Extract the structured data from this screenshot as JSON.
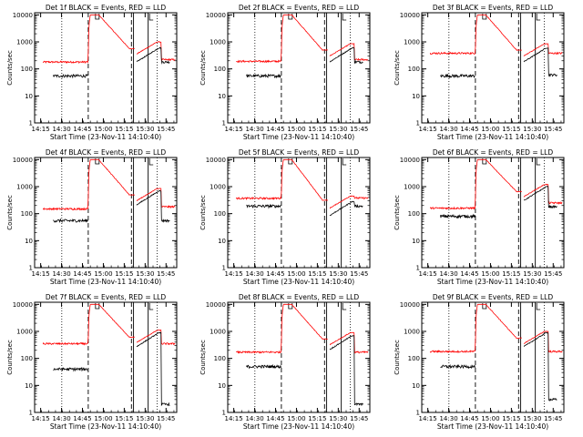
{
  "chart_data": {
    "type": "line",
    "grid_layout": "3x3",
    "y_scale": "log",
    "ylim": [
      1,
      12000
    ],
    "y_ticks": [
      1,
      10,
      100,
      1000,
      10000
    ],
    "y_tick_labels": [
      "1",
      "10",
      "100",
      "1000",
      "10000"
    ],
    "ylabel": "Counts/sec",
    "xlabel": "Start Time (23-Nov-11 14:10:40)",
    "xlim_minutes": [
      0,
      102
    ],
    "x_ticks_minutes": [
      4.33,
      19.33,
      34.33,
      49.33,
      64.33,
      79.33,
      94.33
    ],
    "x_tick_labels": [
      "14:15",
      "14:30",
      "14:45",
      "15:00",
      "15:15",
      "15:30",
      "15:45"
    ],
    "series_colors": {
      "events": "#000000",
      "lld": "#ff0000"
    },
    "panels": [
      {
        "title": "Det 1f BLACK = Events, RED = LLD",
        "events_base": 55,
        "lld_base": 180,
        "ev_end": 180,
        "lld_peak_hit": 1000,
        "ev_peak_hit": 600,
        "lld_after": 220
      },
      {
        "title": "Det 2f BLACK = Events, RED = LLD",
        "events_base": 55,
        "lld_base": 190,
        "ev_end": 180,
        "lld_peak_hit": 850,
        "ev_peak_hit": 600,
        "lld_after": 220
      },
      {
        "title": "Det 3f BLACK = Events, RED = LLD",
        "events_base": 55,
        "lld_base": 380,
        "ev_end": 60,
        "lld_peak_hit": 850,
        "ev_peak_hit": 600,
        "lld_after": 380
      },
      {
        "title": "Det 4f BLACK = Events, RED = LLD",
        "events_base": 55,
        "lld_base": 150,
        "ev_end": 55,
        "lld_peak_hit": 850,
        "ev_peak_hit": 700,
        "lld_after": 180
      },
      {
        "title": "Det 5f BLACK = Events, RED = LLD",
        "events_base": 190,
        "lld_base": 370,
        "ev_end": 190,
        "lld_peak_hit": 450,
        "ev_peak_hit": 280,
        "lld_after": 380
      },
      {
        "title": "Det 6f BLACK = Events, RED = LLD",
        "events_base": 80,
        "lld_base": 160,
        "ev_end": 180,
        "lld_peak_hit": 1200,
        "ev_peak_hit": 1000,
        "lld_after": 250
      },
      {
        "title": "Det 7f BLACK = Events, RED = LLD",
        "events_base": 40,
        "lld_base": 350,
        "ev_end": 2,
        "lld_peak_hit": 1100,
        "ev_peak_hit": 900,
        "lld_after": 350
      },
      {
        "title": "Det 8f BLACK = Events, RED = LLD",
        "events_base": 50,
        "lld_base": 170,
        "ev_end": 2,
        "lld_peak_hit": 900,
        "ev_peak_hit": 700,
        "lld_after": 170
      },
      {
        "title": "Det 9f BLACK = Events, RED = LLD",
        "events_base": 50,
        "lld_base": 180,
        "ev_end": 3,
        "lld_peak_hit": 1000,
        "ev_peak_hit": 900,
        "lld_after": 180
      }
    ],
    "flare_shape": {
      "peak": 10000,
      "attenuator_in_minute": 38.5,
      "peak_minute": 46,
      "dip_minute": 68,
      "dip_level": 380,
      "gap_start_minute": 72,
      "gap_end_minute": 73,
      "end_minute": 91
    },
    "markers_minutes": {
      "dotted": [
        19.5,
        88
      ],
      "dashed": [
        38.5,
        69.5
      ],
      "solid": [
        71,
        81.5
      ]
    },
    "grid": false,
    "legend": "none (color key given in panel titles)"
  }
}
